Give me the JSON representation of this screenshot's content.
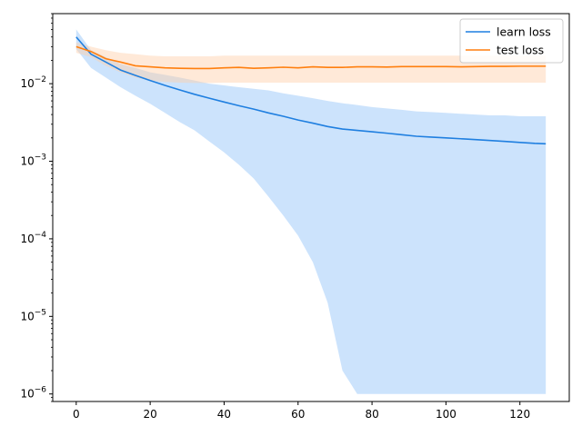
{
  "chart_data": {
    "type": "line",
    "title": "",
    "xlabel": "",
    "ylabel": "",
    "xlim": [
      -6.35,
      133.35
    ],
    "ylim": [
      8e-07,
      0.08
    ],
    "yscale": "log",
    "grid": false,
    "legend_position": "top-right",
    "x_ticks": [
      0,
      20,
      40,
      60,
      80,
      100,
      120
    ],
    "x_tick_labels": [
      "0",
      "20",
      "40",
      "60",
      "80",
      "100",
      "120"
    ],
    "y_ticks": [
      1e-06,
      1e-05,
      0.0001,
      0.001,
      0.01
    ],
    "y_tick_labels": [
      {
        "base": "10",
        "exp": "−6"
      },
      {
        "base": "10",
        "exp": "−5"
      },
      {
        "base": "10",
        "exp": "−4"
      },
      {
        "base": "10",
        "exp": "−3"
      },
      {
        "base": "10",
        "exp": "−2"
      }
    ],
    "x": [
      0,
      4,
      8,
      12,
      16,
      20,
      24,
      28,
      32,
      36,
      40,
      44,
      48,
      52,
      56,
      60,
      64,
      68,
      72,
      76,
      80,
      84,
      88,
      92,
      96,
      100,
      104,
      108,
      112,
      116,
      120,
      124,
      127
    ],
    "series": [
      {
        "name": "learn loss",
        "color": "#1f7fe0",
        "band_color": "#8fc2f8",
        "values": [
          0.04,
          0.024,
          0.019,
          0.015,
          0.0128,
          0.011,
          0.0095,
          0.0083,
          0.0073,
          0.0065,
          0.0058,
          0.0052,
          0.0047,
          0.0042,
          0.0038,
          0.0034,
          0.0031,
          0.0028,
          0.0026,
          0.0025,
          0.0024,
          0.0023,
          0.0022,
          0.0021,
          0.00205,
          0.002,
          0.00195,
          0.0019,
          0.00185,
          0.0018,
          0.00175,
          0.0017,
          0.00168
        ],
        "upper": [
          0.05,
          0.027,
          0.022,
          0.018,
          0.016,
          0.014,
          0.013,
          0.012,
          0.011,
          0.01,
          0.0095,
          0.009,
          0.0086,
          0.0082,
          0.0075,
          0.007,
          0.0065,
          0.006,
          0.0056,
          0.0053,
          0.005,
          0.0048,
          0.0046,
          0.0044,
          0.0043,
          0.0042,
          0.0041,
          0.004,
          0.0039,
          0.0039,
          0.0038,
          0.0038,
          0.0038
        ],
        "lower": [
          0.028,
          0.016,
          0.012,
          0.009,
          0.007,
          0.0055,
          0.0042,
          0.0032,
          0.0025,
          0.0018,
          0.0013,
          0.0009,
          0.0006,
          0.00035,
          0.0002,
          0.00011,
          5e-05,
          1.5e-05,
          2e-06,
          1e-06,
          1e-06,
          1e-06,
          1e-06,
          1e-06,
          1e-06,
          1e-06,
          1e-06,
          1e-06,
          1e-06,
          1e-06,
          1e-06,
          1e-06,
          1e-06
        ]
      },
      {
        "name": "test loss",
        "color": "#ff7f0e",
        "band_color": "#ffcfa8",
        "values": [
          0.03,
          0.026,
          0.021,
          0.019,
          0.017,
          0.0165,
          0.016,
          0.0158,
          0.0157,
          0.0157,
          0.016,
          0.0162,
          0.0158,
          0.016,
          0.0163,
          0.016,
          0.0165,
          0.0162,
          0.0162,
          0.0165,
          0.0165,
          0.0164,
          0.0166,
          0.0166,
          0.0166,
          0.0166,
          0.0165,
          0.0166,
          0.0167,
          0.0167,
          0.0168,
          0.0168,
          0.0168
        ],
        "upper": [
          0.034,
          0.03,
          0.027,
          0.025,
          0.024,
          0.023,
          0.0225,
          0.0225,
          0.0225,
          0.0225,
          0.023,
          0.023,
          0.023,
          0.023,
          0.023,
          0.023,
          0.023,
          0.023,
          0.023,
          0.023,
          0.023,
          0.023,
          0.023,
          0.023,
          0.023,
          0.023,
          0.023,
          0.023,
          0.023,
          0.023,
          0.023,
          0.023,
          0.023
        ],
        "lower": [
          0.025,
          0.022,
          0.017,
          0.014,
          0.012,
          0.011,
          0.0105,
          0.0103,
          0.0102,
          0.0102,
          0.0103,
          0.0103,
          0.0103,
          0.0103,
          0.0103,
          0.0103,
          0.0103,
          0.0103,
          0.0103,
          0.0103,
          0.0103,
          0.0103,
          0.0103,
          0.0103,
          0.0103,
          0.0103,
          0.0103,
          0.0103,
          0.0103,
          0.0103,
          0.0103,
          0.0103,
          0.0103
        ]
      }
    ]
  }
}
